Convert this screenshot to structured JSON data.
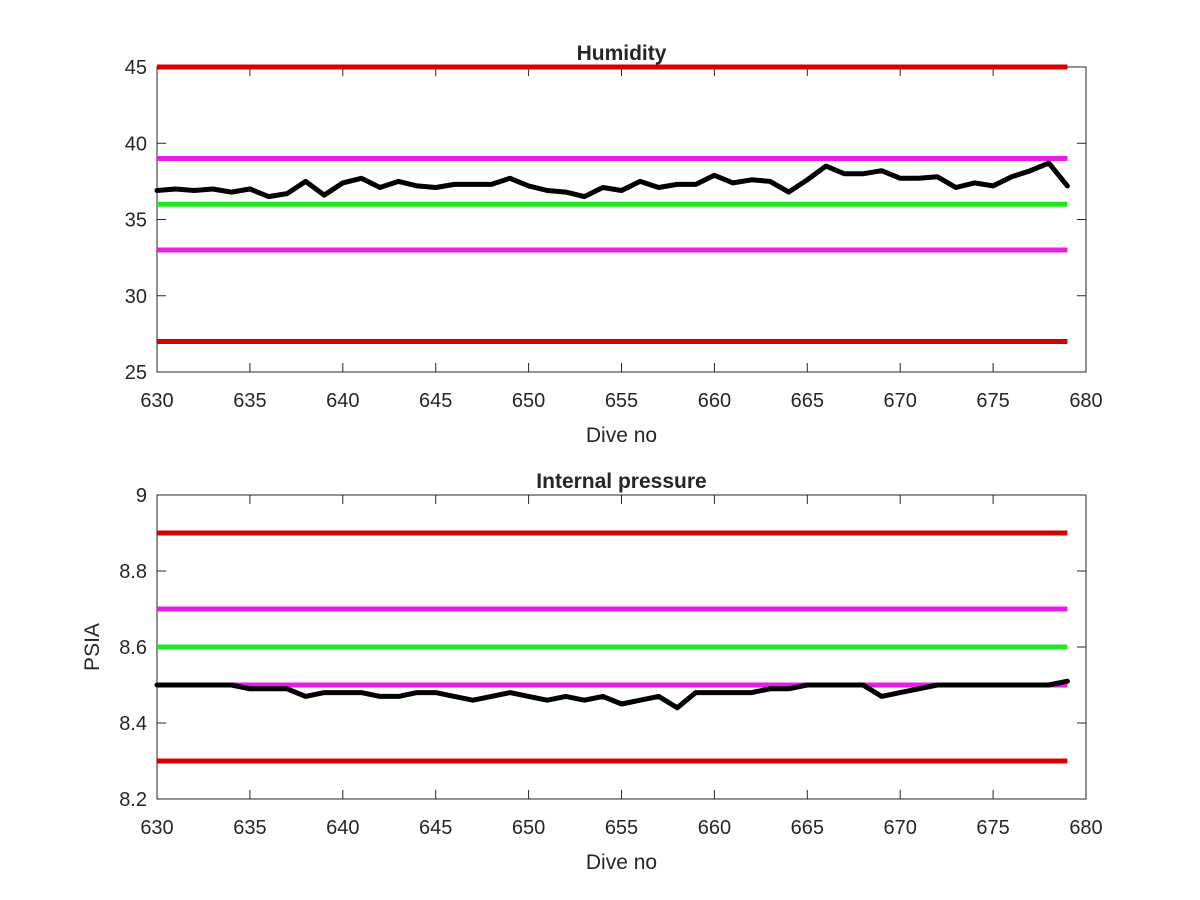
{
  "chart_data": [
    {
      "type": "line",
      "title": "Humidity",
      "xlabel": "Dive no",
      "ylabel": "",
      "xlim": [
        630,
        680
      ],
      "ylim": [
        25,
        45
      ],
      "xticks": [
        630,
        635,
        640,
        645,
        650,
        655,
        660,
        665,
        670,
        675,
        680
      ],
      "yticks": [
        25,
        30,
        35,
        40,
        45
      ],
      "grid": false,
      "series": [
        {
          "color": "#000000",
          "x": [
            630,
            631,
            632,
            633,
            634,
            635,
            636,
            637,
            638,
            639,
            640,
            641,
            642,
            643,
            644,
            645,
            646,
            647,
            648,
            649,
            650,
            651,
            652,
            653,
            654,
            655,
            656,
            657,
            658,
            659,
            660,
            661,
            662,
            663,
            664,
            665,
            666,
            667,
            668,
            669,
            670,
            671,
            672,
            673,
            674,
            675,
            676,
            677,
            678,
            679
          ],
          "values": [
            36.9,
            37.0,
            36.9,
            37.0,
            36.8,
            37.0,
            36.5,
            36.7,
            37.5,
            36.6,
            37.4,
            37.7,
            37.1,
            37.5,
            37.2,
            37.1,
            37.3,
            37.3,
            37.3,
            37.7,
            37.2,
            36.9,
            36.8,
            36.5,
            37.1,
            36.9,
            37.5,
            37.1,
            37.3,
            37.3,
            37.9,
            37.4,
            37.6,
            37.5,
            36.8,
            37.6,
            38.5,
            38.0,
            38.0,
            38.2,
            37.7,
            37.7,
            37.8,
            37.1,
            37.4,
            37.2,
            37.8,
            38.2,
            38.7,
            37.2
          ]
        }
      ],
      "reference_lines": [
        {
          "y": 45,
          "color": "#d40000"
        },
        {
          "y": 39,
          "color": "#e81ee8"
        },
        {
          "y": 36,
          "color": "#1ee81e"
        },
        {
          "y": 33,
          "color": "#e81ee8"
        },
        {
          "y": 27,
          "color": "#d40000"
        }
      ]
    },
    {
      "type": "line",
      "title": "Internal pressure",
      "xlabel": "Dive no",
      "ylabel": "PSIA",
      "xlim": [
        630,
        680
      ],
      "ylim": [
        8.2,
        9.0
      ],
      "xticks": [
        630,
        635,
        640,
        645,
        650,
        655,
        660,
        665,
        670,
        675,
        680
      ],
      "yticks": [
        8.2,
        8.4,
        8.6,
        8.8,
        9
      ],
      "grid": false,
      "series": [
        {
          "color": "#000000",
          "x": [
            630,
            631,
            632,
            633,
            634,
            635,
            636,
            637,
            638,
            639,
            640,
            641,
            642,
            643,
            644,
            645,
            646,
            647,
            648,
            649,
            650,
            651,
            652,
            653,
            654,
            655,
            656,
            657,
            658,
            659,
            660,
            661,
            662,
            663,
            664,
            665,
            666,
            667,
            668,
            669,
            670,
            671,
            672,
            673,
            674,
            675,
            676,
            677,
            678,
            679
          ],
          "values": [
            8.5,
            8.5,
            8.5,
            8.5,
            8.5,
            8.49,
            8.49,
            8.49,
            8.47,
            8.48,
            8.48,
            8.48,
            8.47,
            8.47,
            8.48,
            8.48,
            8.47,
            8.46,
            8.47,
            8.48,
            8.47,
            8.46,
            8.47,
            8.46,
            8.47,
            8.45,
            8.46,
            8.47,
            8.44,
            8.48,
            8.48,
            8.48,
            8.48,
            8.49,
            8.49,
            8.5,
            8.5,
            8.5,
            8.5,
            8.47,
            8.48,
            8.49,
            8.5,
            8.5,
            8.5,
            8.5,
            8.5,
            8.5,
            8.5,
            8.51
          ]
        }
      ],
      "reference_lines": [
        {
          "y": 8.9,
          "color": "#d40000"
        },
        {
          "y": 8.7,
          "color": "#e81ee8"
        },
        {
          "y": 8.6,
          "color": "#1ee81e"
        },
        {
          "y": 8.5,
          "color": "#e81ee8"
        },
        {
          "y": 8.3,
          "color": "#d40000"
        }
      ]
    }
  ]
}
